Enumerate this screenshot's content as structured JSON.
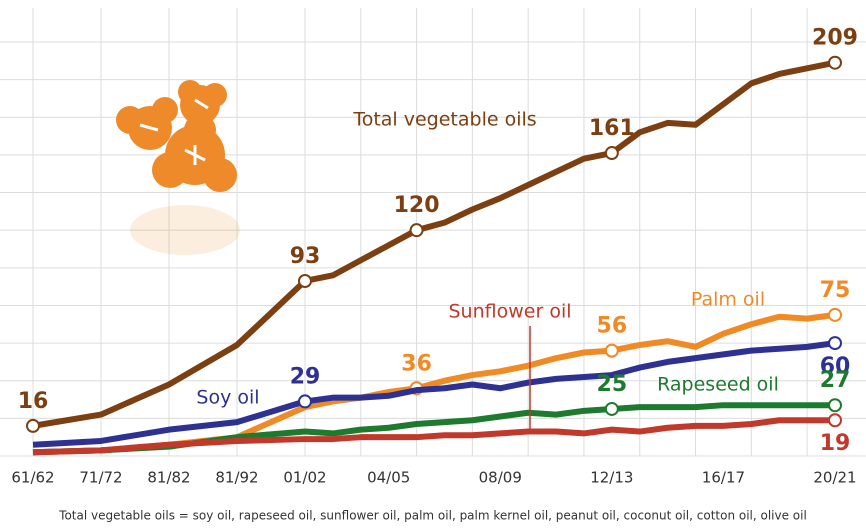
{
  "chart_data": {
    "type": "line",
    "categories": [
      "61/62",
      "71/72",
      "81/82",
      "81/92",
      "01/02",
      null,
      null,
      "04/05",
      null,
      null,
      null,
      "08/09",
      null,
      null,
      null,
      "12/13",
      null,
      null,
      null,
      "16/17",
      null,
      null,
      null,
      "20/21"
    ],
    "ylim": [
      0,
      220
    ],
    "grid": true,
    "series": [
      {
        "name": "Total vegetable oils",
        "color": "#7b3f12",
        "markers": [
          0,
          4,
          8,
          15,
          23
        ],
        "values": [
          16,
          22,
          38,
          59,
          93,
          96,
          104,
          112,
          120,
          124,
          131,
          137,
          144,
          151,
          158,
          161,
          172,
          177,
          176,
          187,
          198,
          203,
          206,
          209
        ]
      },
      {
        "name": "Palm oil",
        "color": "#f08a24",
        "markers": [
          8,
          15,
          23
        ],
        "values": [
          2,
          3,
          6,
          10,
          26,
          29,
          31,
          34,
          36,
          40,
          43,
          45,
          48,
          52,
          55,
          56,
          59,
          61,
          58,
          65,
          70,
          74,
          73,
          75
        ]
      },
      {
        "name": "Soy oil",
        "color": "#2e3192",
        "markers": [
          4,
          23
        ],
        "values": [
          6,
          8,
          14,
          18,
          29,
          31,
          31,
          32,
          35,
          36,
          38,
          36,
          39,
          41,
          42,
          43,
          47,
          50,
          52,
          54,
          56,
          57,
          58,
          60
        ]
      },
      {
        "name": "Rapeseed oil",
        "color": "#1e7a2e",
        "markers": [
          15,
          23
        ],
        "values": [
          2,
          3,
          5,
          10,
          13,
          12,
          14,
          15,
          17,
          18,
          19,
          21,
          23,
          22,
          24,
          25,
          26,
          26,
          26,
          27,
          27,
          27,
          27,
          27
        ]
      },
      {
        "name": "Sunflower oil",
        "color": "#c0392b",
        "markers": [
          23
        ],
        "values": [
          2,
          3,
          6,
          8,
          9,
          9,
          10,
          10,
          10,
          11,
          11,
          12,
          13,
          13,
          12,
          14,
          13,
          15,
          16,
          16,
          17,
          19,
          19,
          19
        ]
      }
    ],
    "footnote": "Total vegetable oils = soy oil, rapeseed oil, sunflower oil, palm oil, palm kernel oil, peanut oil, coconut oil, cotton oil, olive oil"
  }
}
